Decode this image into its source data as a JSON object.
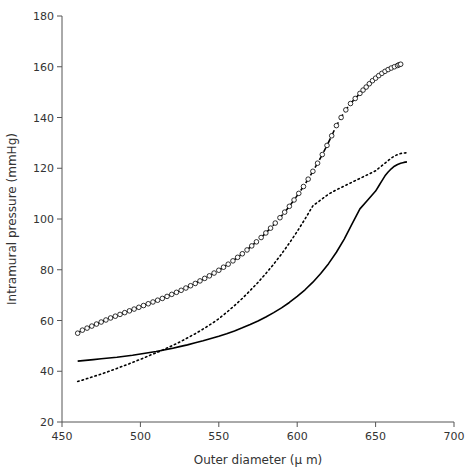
{
  "chart_data": {
    "type": "line",
    "xlabel": "Outer diameter (μ m)",
    "ylabel": "Intramural pressure (mmHg)",
    "xlim": [
      450,
      700
    ],
    "ylim": [
      20,
      180
    ],
    "xticks": [
      450,
      500,
      550,
      600,
      650,
      700
    ],
    "yticks": [
      20,
      40,
      60,
      80,
      100,
      120,
      140,
      160,
      180
    ],
    "grid": false,
    "series": [
      {
        "color": "#000000",
        "line_style": "solid",
        "x": [
          460,
          465,
          470,
          475,
          480,
          485,
          490,
          495,
          500,
          505,
          510,
          515,
          520,
          525,
          530,
          535,
          540,
          545,
          550,
          555,
          560,
          565,
          570,
          575,
          580,
          585,
          590,
          595,
          600,
          605,
          610,
          615,
          620,
          625,
          630,
          635,
          640,
          645,
          650,
          652,
          654,
          656,
          658,
          660,
          662,
          664,
          666,
          668,
          670
        ],
        "values": [
          44,
          44.3,
          44.6,
          44.9,
          45.2,
          45.5,
          45.9,
          46.3,
          46.8,
          47.3,
          47.8,
          48.4,
          49.0,
          49.7,
          50.4,
          51.2,
          52.0,
          52.9,
          53.8,
          54.8,
          55.9,
          57.1,
          58.4,
          59.8,
          61.4,
          63.1,
          65.0,
          67.1,
          69.5,
          72.1,
          75.1,
          78.5,
          82.4,
          86.9,
          92.1,
          98.1,
          104.0,
          107.5,
          111.0,
          113.0,
          115.0,
          117.0,
          118.5,
          119.8,
          120.8,
          121.5,
          122.0,
          122.3,
          122.5
        ]
      },
      {
        "color": "#000000",
        "line_style": "dashed",
        "marker": "circle",
        "x": [
          460,
          463,
          466,
          469,
          472,
          475,
          478,
          481,
          484,
          487,
          490,
          493,
          496,
          499,
          502,
          505,
          508,
          511,
          514,
          517,
          520,
          523,
          526,
          529,
          532,
          535,
          538,
          541,
          544,
          547,
          550,
          553,
          556,
          559,
          562,
          565,
          568,
          571,
          574,
          577,
          580,
          583,
          586,
          589,
          592,
          595,
          598,
          601,
          604,
          607,
          610,
          613,
          616,
          619,
          622,
          625,
          628,
          631,
          634,
          637,
          640,
          642,
          644,
          646,
          648,
          650,
          652,
          654,
          656,
          658,
          660,
          662,
          664,
          665,
          666
        ],
        "values": [
          55,
          56.2,
          57.0,
          57.8,
          58.6,
          59.4,
          60.2,
          61.0,
          61.7,
          62.4,
          63.1,
          63.8,
          64.5,
          65.2,
          65.9,
          66.6,
          67.3,
          68.0,
          68.7,
          69.5,
          70.3,
          71.1,
          71.9,
          72.8,
          73.7,
          74.6,
          75.6,
          76.6,
          77.6,
          78.7,
          79.8,
          81.0,
          82.2,
          83.5,
          84.9,
          86.3,
          87.8,
          89.4,
          91.0,
          92.7,
          94.5,
          96.4,
          98.4,
          100.5,
          102.7,
          105.0,
          107.5,
          110.1,
          112.8,
          115.7,
          118.8,
          122.0,
          125.4,
          129.0,
          132.8,
          136.8,
          140.0,
          143.0,
          145.5,
          147.5,
          149.5,
          150.8,
          152.0,
          153.3,
          154.5,
          155.5,
          156.5,
          157.4,
          158.2,
          158.9,
          159.5,
          160.0,
          160.5,
          160.8,
          161.0
        ]
      },
      {
        "color": "#000000",
        "line_style": "dotted",
        "x": [
          460,
          463,
          466,
          469,
          472,
          475,
          478,
          481,
          484,
          487,
          490,
          493,
          496,
          499,
          502,
          505,
          508,
          511,
          514,
          517,
          520,
          523,
          526,
          529,
          532,
          535,
          538,
          541,
          544,
          547,
          550,
          555,
          560,
          565,
          570,
          575,
          580,
          585,
          590,
          595,
          600,
          605,
          610,
          615,
          620,
          625,
          630,
          635,
          640,
          645,
          650,
          652,
          654,
          656,
          658,
          660,
          662,
          664,
          666,
          668,
          670
        ],
        "values": [
          36,
          36.5,
          37.1,
          37.7,
          38.3,
          38.9,
          39.5,
          40.2,
          40.9,
          41.6,
          42.3,
          43.0,
          43.7,
          44.5,
          45.2,
          46.0,
          46.8,
          47.5,
          48.3,
          49.2,
          50.0,
          50.9,
          51.8,
          52.8,
          53.8,
          54.8,
          55.9,
          57.0,
          58.2,
          59.4,
          60.7,
          63.2,
          65.9,
          68.7,
          71.8,
          75.0,
          78.5,
          82.2,
          86.2,
          90.5,
          95.1,
          100.0,
          105.2,
          107.5,
          109.8,
          111.5,
          113.0,
          114.5,
          116.0,
          117.5,
          119.0,
          120.0,
          121.0,
          122.0,
          123.0,
          124.0,
          124.8,
          125.4,
          125.8,
          126.0,
          126.1
        ]
      }
    ]
  }
}
